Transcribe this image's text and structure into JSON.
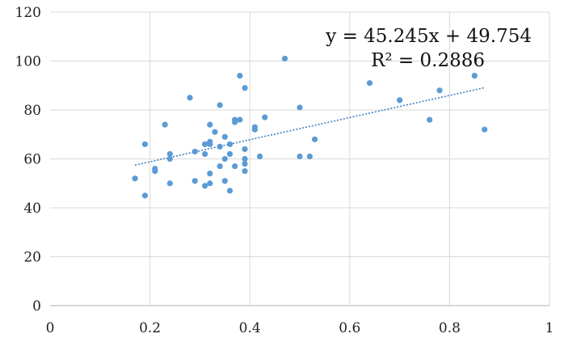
{
  "chart_data": {
    "type": "scatter",
    "title": "",
    "xlabel": "",
    "ylabel": "",
    "xlim": [
      0,
      1
    ],
    "ylim": [
      0,
      120
    ],
    "x_ticks": [
      0,
      0.2,
      0.4,
      0.6,
      0.8,
      1
    ],
    "x_tick_labels": [
      "0",
      "0.2",
      "0.4",
      "0.6",
      "0.8",
      "1"
    ],
    "y_ticks": [
      0,
      20,
      40,
      60,
      80,
      100,
      120
    ],
    "y_tick_labels": [
      "0",
      "20",
      "40",
      "60",
      "80",
      "100",
      "120"
    ],
    "grid": true,
    "legend": "none",
    "marker_color": "#5B9BD5",
    "trendline_color": "#3F7FC1",
    "gridline_color": "#D9D9D9",
    "series": [
      {
        "points": [
          [
            0.17,
            52
          ],
          [
            0.19,
            45
          ],
          [
            0.19,
            66
          ],
          [
            0.21,
            56
          ],
          [
            0.21,
            55
          ],
          [
            0.23,
            74
          ],
          [
            0.24,
            62
          ],
          [
            0.24,
            60
          ],
          [
            0.24,
            50
          ],
          [
            0.28,
            85
          ],
          [
            0.29,
            63
          ],
          [
            0.29,
            51
          ],
          [
            0.31,
            62
          ],
          [
            0.31,
            66
          ],
          [
            0.31,
            49
          ],
          [
            0.32,
            74
          ],
          [
            0.32,
            67
          ],
          [
            0.32,
            66
          ],
          [
            0.32,
            54
          ],
          [
            0.32,
            50
          ],
          [
            0.33,
            71
          ],
          [
            0.34,
            82
          ],
          [
            0.34,
            65
          ],
          [
            0.34,
            57
          ],
          [
            0.35,
            69
          ],
          [
            0.35,
            60
          ],
          [
            0.35,
            51
          ],
          [
            0.36,
            66
          ],
          [
            0.36,
            62
          ],
          [
            0.36,
            47
          ],
          [
            0.37,
            76
          ],
          [
            0.37,
            75
          ],
          [
            0.37,
            57
          ],
          [
            0.38,
            94
          ],
          [
            0.38,
            76
          ],
          [
            0.39,
            89
          ],
          [
            0.39,
            64
          ],
          [
            0.39,
            60
          ],
          [
            0.39,
            58
          ],
          [
            0.39,
            55
          ],
          [
            0.41,
            73
          ],
          [
            0.41,
            72
          ],
          [
            0.42,
            61
          ],
          [
            0.43,
            77
          ],
          [
            0.47,
            101
          ],
          [
            0.5,
            81
          ],
          [
            0.5,
            61
          ],
          [
            0.52,
            61
          ],
          [
            0.53,
            68
          ],
          [
            0.64,
            91
          ],
          [
            0.7,
            84
          ],
          [
            0.76,
            76
          ],
          [
            0.78,
            88
          ],
          [
            0.85,
            94
          ],
          [
            0.87,
            72
          ]
        ]
      }
    ],
    "trendline": {
      "type": "linear",
      "slope": 45.245,
      "intercept": 49.754,
      "x_range": [
        0.17,
        0.87
      ],
      "r_squared": 0.2886
    },
    "annotations": {
      "equation": "y = 45.245x + 49.754",
      "r_squared": "R² = 0.2886"
    }
  }
}
